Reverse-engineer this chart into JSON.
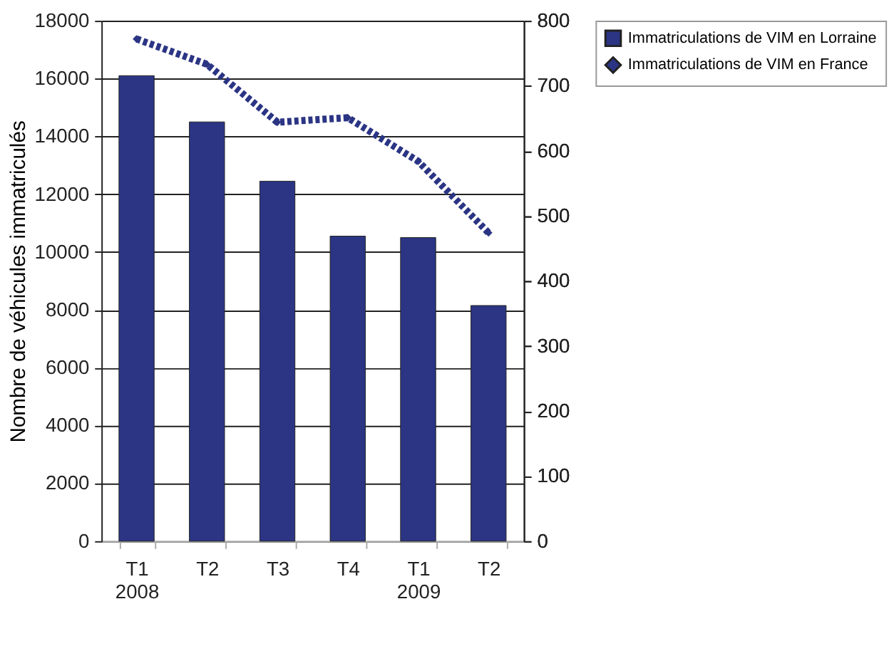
{
  "chart_data": {
    "type": "bar",
    "categories": [
      "T1\n2008",
      "T2",
      "T3",
      "T4",
      "T1\n2009",
      "T2"
    ],
    "ylabel": "Nombre de véhicules immatriculés",
    "series": [
      {
        "name": "Immatriculations de VIM en Lorraine",
        "color": "#2b3584",
        "values": [
          16100,
          14500,
          12450,
          10550,
          10500,
          8150
        ]
      },
      {
        "name": "Immatriculations de VIM en France",
        "type": "line",
        "axis": "y2",
        "color": "#2b3584",
        "marker": "diamond",
        "line_style": "dotted",
        "values": [
          772,
          733,
          644,
          651,
          584,
          474
        ]
      }
    ],
    "ylim": [
      0,
      18000
    ],
    "yticks": [
      0,
      2000,
      4000,
      6000,
      8000,
      10000,
      12000,
      14000,
      16000,
      18000
    ],
    "y2lim": [
      0,
      800
    ],
    "y2ticks": [
      0,
      100,
      200,
      300,
      400,
      500,
      600,
      700,
      800
    ],
    "grid": "y",
    "legend": "right"
  }
}
